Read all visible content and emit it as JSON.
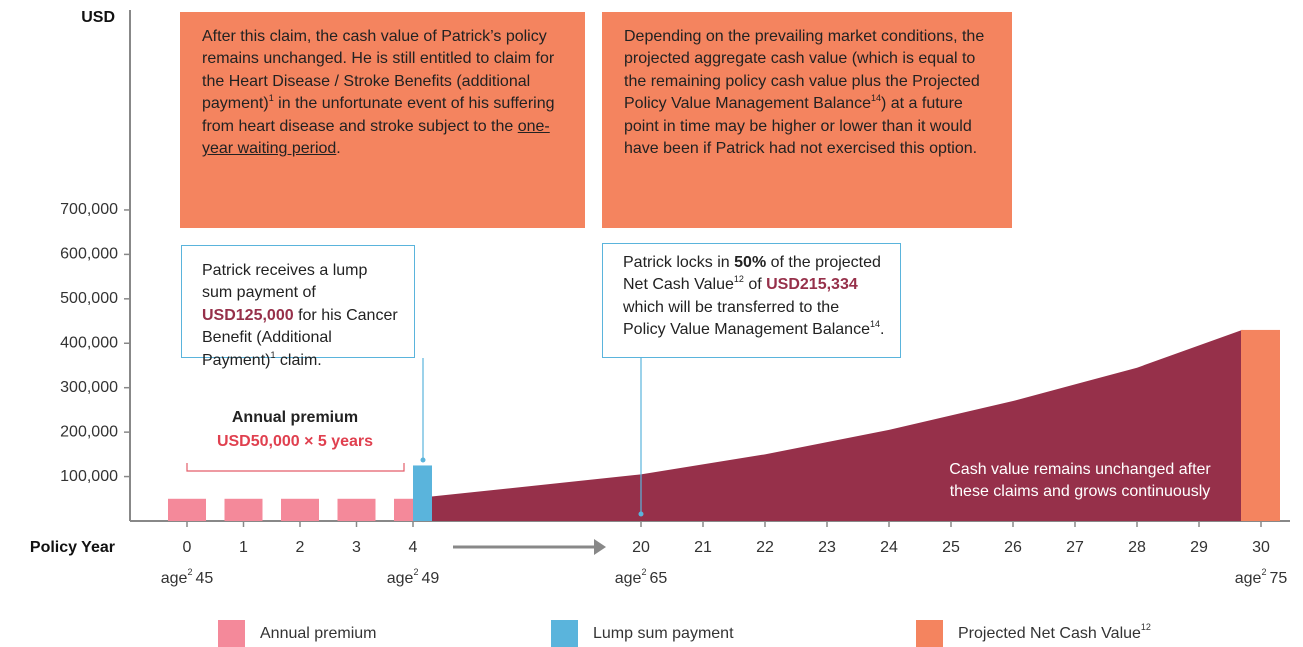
{
  "chart_data": {
    "type": "combo",
    "y_axis_label": "USD",
    "x_axis_label": "Policy Year",
    "ylim": [
      0,
      1150000
    ],
    "yticks": [
      {
        "value": 100000,
        "label": "100,000"
      },
      {
        "value": 200000,
        "label": "200,000"
      },
      {
        "value": 300000,
        "label": "300,000"
      },
      {
        "value": 400000,
        "label": "400,000"
      },
      {
        "value": 500000,
        "label": "500,000"
      },
      {
        "value": 600000,
        "label": "600,000"
      },
      {
        "value": 700000,
        "label": "700,000"
      }
    ],
    "xticks": [
      0,
      1,
      2,
      3,
      4,
      20,
      21,
      22,
      23,
      24,
      25,
      26,
      27,
      28,
      29,
      30
    ],
    "age_label_prefix": "age",
    "age_label_note": "2",
    "age_labels": [
      "45",
      null,
      null,
      null,
      "49",
      "65",
      null,
      null,
      null,
      null,
      null,
      null,
      null,
      null,
      null,
      "75"
    ],
    "series": [
      {
        "name": "Annual premium",
        "color": "#f4899a",
        "values": [
          50000,
          50000,
          50000,
          50000,
          50000,
          null,
          null,
          null,
          null,
          null,
          null,
          null,
          null,
          null,
          null,
          null
        ]
      },
      {
        "name": "Lump sum payment",
        "color": "#5ab4dc",
        "values": [
          null,
          null,
          null,
          null,
          125000,
          null,
          null,
          null,
          null,
          null,
          null,
          null,
          null,
          null,
          null,
          null
        ]
      },
      {
        "name": "Projected Net Cash Value",
        "name_note": "12",
        "color": "#f4845f",
        "values": [
          null,
          null,
          null,
          null,
          null,
          null,
          null,
          null,
          null,
          null,
          null,
          null,
          null,
          null,
          null,
          430000
        ]
      }
    ],
    "cash_value": {
      "color": "#96304a",
      "x": [
        5.3,
        20,
        22,
        24,
        26,
        28,
        29.7
      ],
      "values": [
        55000,
        105000,
        150000,
        205000,
        270000,
        345000,
        430000
      ],
      "label_lines": [
        "Cash value remains unchanged after",
        "these claims and grows continuously"
      ]
    },
    "premium_note": {
      "title": "Annual premium",
      "detail": "USD50,000 × 5 years"
    },
    "annotations": [
      {
        "segments": [
          {
            "text": "After this claim, the cash value of Patrick’s policy remains unchanged. He is still entitled to claim for the Heart Disease / Stroke Benefits (additional payment)"
          },
          {
            "text": "1",
            "style": "sup"
          },
          {
            "text": " in the unfortunate event of his suffering from heart disease and stroke subject to the "
          },
          {
            "text": "one-year waiting period",
            "style": "underline"
          },
          {
            "text": "."
          }
        ]
      },
      {
        "segments": [
          {
            "text": "Depending on the prevailing market conditions, the projected aggregate cash value (which is equal to the remaining policy cash value plus the Projected Policy Value Management Balance"
          },
          {
            "text": "14",
            "style": "sup"
          },
          {
            "text": ") at a future point in time may be higher or lower than it would have been if Patrick had not exercised this option."
          }
        ]
      },
      {
        "segments": [
          {
            "text": "Patrick receives a lump sum payment of "
          },
          {
            "text": "USD125,000",
            "style": "bold-red"
          },
          {
            "text": " for his Cancer Benefit (Additional Payment)"
          },
          {
            "text": "1",
            "style": "sup"
          },
          {
            "text": " claim."
          }
        ]
      },
      {
        "segments": [
          {
            "text": "Patrick locks in "
          },
          {
            "text": "50%",
            "style": "bold"
          },
          {
            "text": " of the projected Net Cash Value"
          },
          {
            "text": "12",
            "style": "sup"
          },
          {
            "text": " of "
          },
          {
            "text": "USD215,334",
            "style": "bold-red"
          },
          {
            "text": " which will be transferred to the Policy Value Management Balance"
          },
          {
            "text": "14",
            "style": "sup"
          },
          {
            "text": "."
          }
        ]
      }
    ]
  }
}
